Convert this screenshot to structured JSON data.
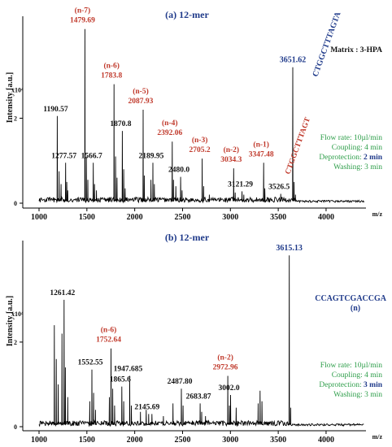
{
  "chart_data": [
    {
      "type": "line",
      "title": "(a) 12-mer",
      "matrix_label": "Matrix : 3-HPA",
      "ylabel": "Intensity [a.u.]",
      "yscale_label": "x10⁴",
      "xlabel": "m/z",
      "xlim": [
        1000,
        4400
      ],
      "ylim": [
        0,
        4.4
      ],
      "x_ticks": [
        "1000",
        "1500",
        "2000",
        "2500",
        "3000",
        "3500",
        "4000"
      ],
      "y_ticks": [
        "0",
        "2"
      ],
      "sequence_main": "CTGGCTTTAGTA",
      "sequence_n1": "CTGGCTTTAGT",
      "conditions": {
        "flow": "Flow rate: 10µl/min",
        "coupling": "Coupling: 4 min",
        "deprotection_label": "Deprotection: ",
        "deprotection_value": "2 min",
        "washing": "Washing: 3 min"
      },
      "peaks": [
        {
          "x": 1190.57,
          "y": 2.05,
          "label": "1190.57"
        },
        {
          "x": 1277.57,
          "y": 0.95,
          "label": "1277.57"
        },
        {
          "x": 1479.69,
          "y": 4.1,
          "label": "1479.69",
          "tag": "(n-7)"
        },
        {
          "x": 1566.7,
          "y": 0.95,
          "label": "1566.7"
        },
        {
          "x": 1783.8,
          "y": 2.8,
          "label": "1783.8",
          "tag": "(n-6)"
        },
        {
          "x": 1870.8,
          "y": 1.7,
          "label": "1870.8"
        },
        {
          "x": 2087.93,
          "y": 2.2,
          "label": "2087.93",
          "tag": "(n-5)"
        },
        {
          "x": 2189.95,
          "y": 0.95,
          "label": "2189.95"
        },
        {
          "x": 2392.06,
          "y": 1.45,
          "label": "2392.06",
          "tag": "(n-4)"
        },
        {
          "x": 2480.0,
          "y": 0.62,
          "label": "2480.0"
        },
        {
          "x": 2705.2,
          "y": 1.05,
          "label": "2705.2",
          "tag": "(n-3)"
        },
        {
          "x": 3034.3,
          "y": 0.82,
          "label": "3034.3",
          "tag": "(n-2)"
        },
        {
          "x": 3121.29,
          "y": 0.28,
          "label": "3121.29"
        },
        {
          "x": 3347.48,
          "y": 0.95,
          "label": "3347.48",
          "tag": "(n-1)"
        },
        {
          "x": 3526.5,
          "y": 0.22,
          "label": "3526.5"
        },
        {
          "x": 3651.62,
          "y": 3.2,
          "label": "3651.62"
        }
      ],
      "minor_peaks": [
        {
          "x": 1210,
          "y": 0.75
        },
        {
          "x": 1230,
          "y": 0.45
        },
        {
          "x": 1290,
          "y": 0.5
        },
        {
          "x": 1300,
          "y": 0.3
        },
        {
          "x": 1495,
          "y": 1.1
        },
        {
          "x": 1510,
          "y": 0.55
        },
        {
          "x": 1580,
          "y": 0.45
        },
        {
          "x": 1600,
          "y": 0.3
        },
        {
          "x": 1800,
          "y": 1.1
        },
        {
          "x": 1815,
          "y": 0.6
        },
        {
          "x": 1885,
          "y": 0.8
        },
        {
          "x": 1900,
          "y": 0.35
        },
        {
          "x": 2100,
          "y": 0.65
        },
        {
          "x": 2170,
          "y": 0.55
        },
        {
          "x": 2205,
          "y": 0.45
        },
        {
          "x": 2405,
          "y": 0.55
        },
        {
          "x": 2430,
          "y": 0.4
        },
        {
          "x": 2495,
          "y": 0.3
        },
        {
          "x": 2720,
          "y": 0.4
        },
        {
          "x": 2780,
          "y": 0.2
        },
        {
          "x": 3050,
          "y": 0.25
        },
        {
          "x": 3140,
          "y": 0.2
        },
        {
          "x": 3360,
          "y": 0.35
        },
        {
          "x": 3665,
          "y": 0.5
        },
        {
          "x": 3680,
          "y": 0.2
        }
      ]
    },
    {
      "type": "line",
      "title": "(b) 12-mer",
      "ylabel": "Intensity [a.u.]",
      "yscale_label": "x10⁴",
      "xlabel": "m/z",
      "xlim": [
        1000,
        4400
      ],
      "ylim": [
        0,
        4.4
      ],
      "x_ticks": [
        "1000",
        "1500",
        "2000",
        "2500",
        "3000",
        "3500",
        "4000"
      ],
      "y_ticks": [
        "0",
        "2"
      ],
      "sequence_main": "CCAGTCGACCGA",
      "sequence_n": "(n)",
      "conditions": {
        "flow": "Flow rate: 10µl/min",
        "coupling": "Coupling: 4 min",
        "deprotection_label": "Deprotection: ",
        "deprotection_value": "3 min",
        "washing": "Washing: 3 min"
      },
      "peaks": [
        {
          "x": 1261.42,
          "y": 3.0,
          "label": "1261.42"
        },
        {
          "x": 1552.55,
          "y": 1.35,
          "label": "1552.55"
        },
        {
          "x": 1752.64,
          "y": 1.85,
          "label": "1752.64",
          "tag": "(n-6)"
        },
        {
          "x": 1865.6,
          "y": 0.95,
          "label": "1865.6"
        },
        {
          "x": 1947.685,
          "y": 1.2,
          "label": "1947.685"
        },
        {
          "x": 2145.69,
          "y": 0.3,
          "label": "2145.69"
        },
        {
          "x": 2487.8,
          "y": 0.9,
          "label": "2487.80"
        },
        {
          "x": 2683.87,
          "y": 0.55,
          "label": "2683.87"
        },
        {
          "x": 2972.96,
          "y": 1.2,
          "label": "2972.96",
          "tag": "(n-2)"
        },
        {
          "x": 3002.0,
          "y": 0.75,
          "label": "3002.0"
        },
        {
          "x": 3615.13,
          "y": 4.05,
          "label": "3615.13"
        }
      ],
      "minor_peaks": [
        {
          "x": 1160,
          "y": 2.4
        },
        {
          "x": 1180,
          "y": 1.6
        },
        {
          "x": 1200,
          "y": 1.0
        },
        {
          "x": 1240,
          "y": 2.2
        },
        {
          "x": 1275,
          "y": 1.4
        },
        {
          "x": 1300,
          "y": 0.7
        },
        {
          "x": 1530,
          "y": 0.6
        },
        {
          "x": 1570,
          "y": 0.8
        },
        {
          "x": 1590,
          "y": 0.4
        },
        {
          "x": 1735,
          "y": 0.7
        },
        {
          "x": 1770,
          "y": 0.9
        },
        {
          "x": 1790,
          "y": 0.5
        },
        {
          "x": 1885,
          "y": 0.6
        },
        {
          "x": 1965,
          "y": 0.5
        },
        {
          "x": 2060,
          "y": 0.35
        },
        {
          "x": 2120,
          "y": 0.4
        },
        {
          "x": 2180,
          "y": 0.3
        },
        {
          "x": 2300,
          "y": 0.25
        },
        {
          "x": 2400,
          "y": 0.55
        },
        {
          "x": 2505,
          "y": 0.5
        },
        {
          "x": 2700,
          "y": 0.35
        },
        {
          "x": 2740,
          "y": 0.25
        },
        {
          "x": 2990,
          "y": 0.5
        },
        {
          "x": 3060,
          "y": 0.45
        },
        {
          "x": 3290,
          "y": 0.55
        },
        {
          "x": 3310,
          "y": 0.85
        },
        {
          "x": 3330,
          "y": 0.6
        },
        {
          "x": 3630,
          "y": 0.45
        }
      ]
    }
  ]
}
